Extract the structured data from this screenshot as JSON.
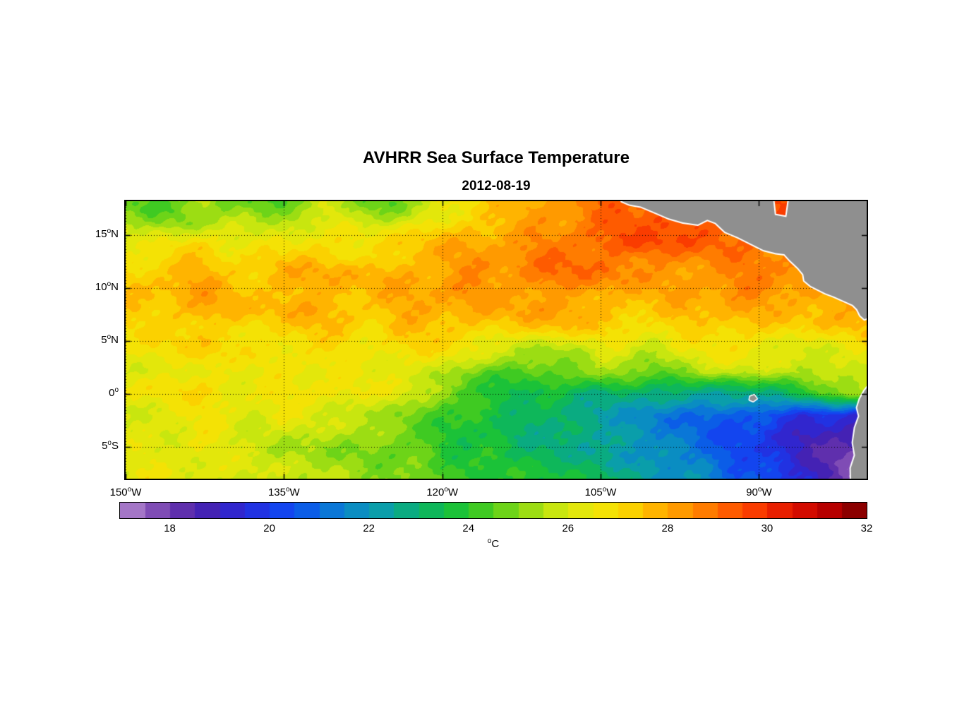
{
  "chart_data": {
    "type": "heatmap",
    "title": "AVHRR Sea Surface Temperature",
    "subtitle": "2012-08-19",
    "units": "°C",
    "axes": {
      "x_range": [
        -150,
        -79.8
      ],
      "y_range": [
        -8,
        18.2
      ],
      "x_ticks": [
        {
          "value": -150,
          "label": "150°W"
        },
        {
          "value": -135,
          "label": "135°W"
        },
        {
          "value": -120,
          "label": "120°W"
        },
        {
          "value": -105,
          "label": "105°W"
        },
        {
          "value": -90,
          "label": "90°W"
        }
      ],
      "y_ticks": [
        {
          "value": 15,
          "label": "15°N"
        },
        {
          "value": 10,
          "label": "10°N"
        },
        {
          "value": 5,
          "label": "5°N"
        },
        {
          "value": 0,
          "label": "0°"
        },
        {
          "value": -5,
          "label": "5°S"
        }
      ],
      "grid": "dotted"
    },
    "lon": [
      -150,
      -147.5,
      -145,
      -142.5,
      -140,
      -137.5,
      -135,
      -132.5,
      -130,
      -127.5,
      -125,
      -122.5,
      -120,
      -117.5,
      -115,
      -112.5,
      -110,
      -107.5,
      -105,
      -102.5,
      -100,
      -97.5,
      -95,
      -92.5,
      -90,
      -87.5,
      -85,
      -82.5,
      -80
    ],
    "lat": [
      18,
      16,
      14,
      12,
      10,
      8,
      6,
      4,
      2,
      0,
      -2,
      -4,
      -6,
      -8
    ],
    "sst": [
      [
        25.0,
        24.6,
        25.2,
        25.6,
        24.8,
        24.5,
        25.0,
        25.6,
        26.0,
        25.2,
        24.8,
        25.6,
        26.4,
        27.0,
        27.6,
        27.9,
        28.3,
        28.8,
        29.2,
        29.5,
        29.7,
        29.8,
        29.9,
        29.8,
        29.7,
        29.6,
        29.6,
        29.6,
        29.6
      ],
      [
        25.8,
        25.4,
        25.2,
        26.0,
        26.3,
        25.7,
        25.9,
        26.3,
        26.6,
        26.1,
        26.3,
        26.8,
        27.2,
        27.6,
        28.0,
        28.2,
        28.5,
        28.9,
        29.2,
        29.5,
        29.7,
        29.9,
        29.8,
        29.6,
        29.5,
        29.5,
        29.5,
        29.5,
        29.5
      ],
      [
        26.6,
        26.9,
        27.1,
        27.3,
        26.9,
        26.7,
        27.1,
        27.4,
        27.2,
        27.0,
        27.4,
        27.7,
        28.0,
        28.2,
        28.4,
        28.6,
        28.9,
        29.2,
        29.4,
        29.5,
        29.6,
        29.4,
        29.2,
        29.1,
        29.0,
        29.0,
        29.0,
        29.0,
        29.0
      ],
      [
        27.2,
        27.5,
        27.7,
        27.9,
        27.6,
        27.4,
        27.8,
        28.0,
        27.8,
        27.6,
        27.9,
        28.1,
        28.3,
        28.5,
        28.7,
        28.9,
        29.1,
        29.3,
        29.2,
        29.0,
        28.8,
        28.7,
        28.6,
        28.8,
        29.0,
        28.9,
        28.8,
        28.8,
        28.8
      ],
      [
        27.7,
        27.9,
        28.1,
        28.3,
        28.0,
        27.8,
        28.1,
        28.3,
        28.1,
        27.9,
        28.1,
        28.3,
        28.5,
        28.6,
        28.4,
        28.6,
        28.8,
        28.6,
        28.4,
        28.2,
        28.1,
        28.3,
        28.5,
        28.7,
        28.8,
        28.7,
        28.6,
        28.6,
        28.6
      ],
      [
        27.4,
        27.6,
        27.9,
        28.1,
        27.8,
        27.6,
        27.9,
        28.1,
        27.9,
        27.7,
        27.9,
        28.1,
        28.3,
        28.2,
        28.0,
        28.2,
        28.4,
        28.2,
        28.0,
        27.8,
        27.7,
        27.9,
        28.1,
        28.3,
        28.1,
        27.9,
        28.0,
        28.3,
        28.5
      ],
      [
        27.0,
        27.2,
        27.5,
        27.7,
        27.4,
        27.2,
        27.5,
        27.7,
        27.5,
        27.3,
        27.5,
        27.7,
        27.8,
        27.6,
        27.3,
        27.5,
        27.7,
        27.5,
        27.3,
        27.1,
        27.0,
        27.2,
        27.4,
        27.6,
        27.4,
        27.2,
        27.1,
        27.4,
        27.6
      ],
      [
        26.7,
        26.9,
        27.1,
        27.3,
        27.0,
        26.8,
        27.0,
        27.2,
        27.0,
        26.8,
        27.0,
        27.1,
        26.9,
        26.6,
        26.1,
        25.6,
        25.4,
        25.9,
        26.3,
        26.2,
        26.0,
        26.4,
        26.7,
        26.9,
        26.7,
        26.5,
        26.3,
        26.6,
        26.8
      ],
      [
        26.4,
        26.6,
        26.8,
        27.0,
        26.8,
        26.6,
        26.8,
        26.9,
        26.7,
        26.5,
        26.7,
        26.5,
        26.1,
        25.4,
        24.8,
        24.4,
        24.7,
        25.2,
        25.6,
        25.2,
        24.8,
        25.4,
        25.9,
        26.1,
        25.9,
        25.7,
        25.5,
        26.0,
        26.4
      ],
      [
        26.6,
        26.8,
        27.0,
        27.1,
        26.9,
        26.7,
        26.9,
        27.1,
        26.9,
        26.7,
        26.5,
        25.9,
        25.1,
        24.4,
        24.0,
        23.8,
        23.6,
        23.4,
        23.2,
        23.0,
        22.9,
        22.7,
        22.5,
        22.7,
        23.1,
        23.5,
        24.1,
        25.1,
        25.9
      ],
      [
        26.3,
        26.5,
        26.7,
        26.9,
        26.6,
        26.4,
        26.6,
        26.4,
        26.2,
        26.0,
        25.7,
        25.2,
        24.6,
        24.1,
        23.8,
        23.6,
        23.3,
        23.0,
        22.7,
        22.3,
        21.9,
        21.5,
        21.2,
        20.9,
        20.7,
        20.4,
        20.0,
        19.7,
        19.4
      ],
      [
        26.2,
        26.4,
        26.6,
        26.7,
        26.4,
        26.2,
        26.0,
        25.8,
        25.6,
        25.4,
        25.1,
        24.7,
        24.3,
        23.9,
        23.6,
        23.4,
        23.1,
        22.9,
        22.6,
        22.2,
        21.8,
        21.4,
        21.0,
        20.6,
        20.1,
        19.6,
        19.2,
        18.9,
        18.7
      ],
      [
        26.4,
        26.5,
        26.6,
        26.5,
        26.3,
        26.1,
        25.9,
        25.7,
        25.5,
        25.3,
        25.1,
        24.8,
        24.4,
        24.1,
        23.9,
        23.7,
        23.5,
        23.3,
        23.0,
        22.6,
        22.2,
        21.8,
        21.4,
        20.9,
        20.3,
        19.7,
        19.1,
        18.4,
        17.8
      ],
      [
        26.6,
        26.7,
        26.8,
        26.6,
        26.4,
        26.2,
        26.0,
        25.8,
        25.6,
        25.5,
        25.3,
        25.0,
        24.7,
        24.4,
        24.2,
        24.0,
        23.8,
        23.6,
        23.3,
        23.0,
        22.6,
        22.2,
        21.8,
        21.3,
        20.7,
        20.0,
        19.2,
        18.2,
        17.4
      ]
    ],
    "colormap": [
      [
        17.0,
        "#cdaad6"
      ],
      [
        17.6,
        "#9c6cc4"
      ],
      [
        18.3,
        "#6a34aa"
      ],
      [
        19.0,
        "#4422b4"
      ],
      [
        19.7,
        "#2a28d8"
      ],
      [
        20.4,
        "#1440f0"
      ],
      [
        21.1,
        "#0a62e6"
      ],
      [
        21.8,
        "#0a86cc"
      ],
      [
        22.5,
        "#0a9eaa"
      ],
      [
        23.2,
        "#0ab070"
      ],
      [
        23.9,
        "#14c03c"
      ],
      [
        24.6,
        "#46cc1e"
      ],
      [
        25.3,
        "#8ada14"
      ],
      [
        26.0,
        "#c8e60f"
      ],
      [
        26.7,
        "#eee80a"
      ],
      [
        27.3,
        "#fadc00"
      ],
      [
        28.0,
        "#ffb400"
      ],
      [
        28.7,
        "#ff9000"
      ],
      [
        29.3,
        "#ff6800"
      ],
      [
        30.0,
        "#fa3c00"
      ],
      [
        30.7,
        "#e11400"
      ],
      [
        31.4,
        "#c00000"
      ],
      [
        32.0,
        "#8c0000"
      ]
    ],
    "colorbar": {
      "label": "°C",
      "range": [
        17,
        32
      ],
      "ticks": [
        18,
        20,
        22,
        24,
        26,
        28,
        30,
        32
      ],
      "segment_step": 0.5
    },
    "land_color": "#8f8f8f",
    "coast_color": "#ffffff",
    "land": {
      "central_america": [
        [
          -103.2,
          19.5
        ],
        [
          -103.0,
          18.2
        ],
        [
          -102.3,
          17.9
        ],
        [
          -101.2,
          17.7
        ],
        [
          -100.0,
          17.2
        ],
        [
          -98.6,
          16.6
        ],
        [
          -97.2,
          16.2
        ],
        [
          -95.8,
          16.0
        ],
        [
          -94.9,
          16.45
        ],
        [
          -94.1,
          16.15
        ],
        [
          -93.2,
          15.3
        ],
        [
          -92.0,
          14.8
        ],
        [
          -90.8,
          14.2
        ],
        [
          -89.6,
          13.6
        ],
        [
          -88.4,
          13.3
        ],
        [
          -87.6,
          13.2
        ],
        [
          -87.1,
          12.65
        ],
        [
          -86.3,
          11.9
        ],
        [
          -85.8,
          11.3
        ],
        [
          -85.7,
          10.7
        ],
        [
          -85.1,
          10.2
        ],
        [
          -84.7,
          10.0
        ],
        [
          -83.7,
          9.5
        ],
        [
          -82.9,
          9.2
        ],
        [
          -82.0,
          8.8
        ],
        [
          -81.1,
          8.4
        ],
        [
          -80.7,
          8.0
        ],
        [
          -80.4,
          7.4
        ],
        [
          -80.0,
          7.05
        ],
        [
          -79.5,
          7.3
        ],
        [
          -79.0,
          6.9
        ],
        [
          -78.5,
          7.0
        ],
        [
          -78.5,
          19.5
        ],
        [
          -87.0,
          19.5
        ],
        [
          -87.4,
          16.7
        ],
        [
          -88.5,
          16.9
        ],
        [
          -88.8,
          19.5
        ]
      ],
      "south_america": [
        [
          -79.3,
          1.2
        ],
        [
          -80.0,
          0.3
        ],
        [
          -80.45,
          -0.5
        ],
        [
          -80.7,
          -1.3
        ],
        [
          -80.5,
          -2.1
        ],
        [
          -80.9,
          -3.2
        ],
        [
          -81.1,
          -4.6
        ],
        [
          -80.9,
          -5.8
        ],
        [
          -81.3,
          -7.0
        ],
        [
          -81.25,
          -9.0
        ],
        [
          -78.0,
          -9.0
        ],
        [
          -78.0,
          1.2
        ]
      ],
      "galapagos": [
        [
          -90.85,
          -0.25
        ],
        [
          -90.45,
          -0.1
        ],
        [
          -90.2,
          -0.45
        ],
        [
          -90.55,
          -0.7
        ],
        [
          -90.9,
          -0.55
        ]
      ]
    }
  }
}
